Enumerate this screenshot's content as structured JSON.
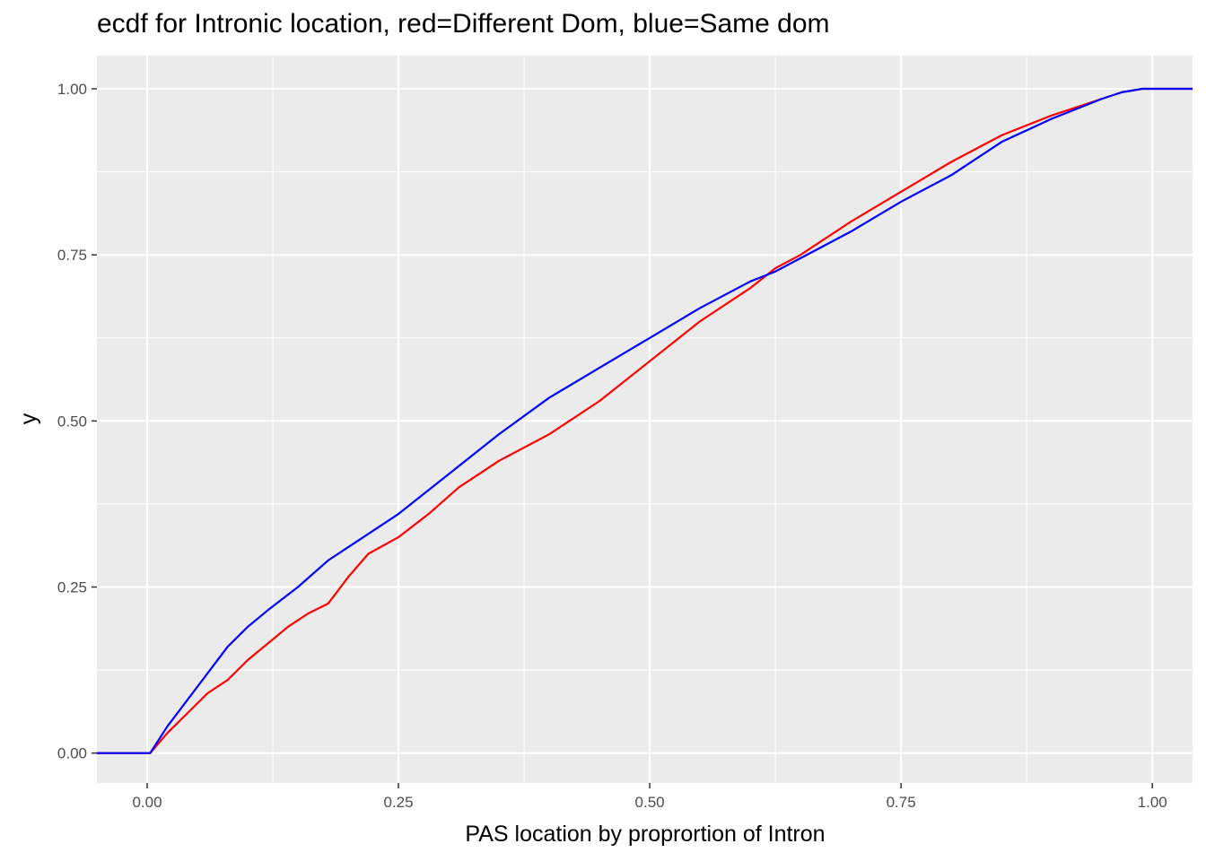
{
  "chart_data": {
    "type": "line",
    "title": "ecdf for Intronic location, red=Different Dom, blue=Same dom",
    "xlabel": "PAS location by proprortion of Intron",
    "ylabel": "y",
    "xlim": [
      -0.05,
      1.04
    ],
    "ylim": [
      -0.045,
      1.05
    ],
    "x_ticks": [
      "0.00",
      "0.25",
      "0.50",
      "0.75",
      "1.00"
    ],
    "y_ticks": [
      "0.00",
      "0.25",
      "0.50",
      "0.75",
      "1.00"
    ],
    "grid": true,
    "legend": "none",
    "series": [
      {
        "color": "#ff0000",
        "x": [
          -0.05,
          0.003,
          0.02,
          0.04,
          0.06,
          0.08,
          0.1,
          0.12,
          0.14,
          0.16,
          0.18,
          0.2,
          0.22,
          0.25,
          0.28,
          0.31,
          0.35,
          0.4,
          0.45,
          0.5,
          0.55,
          0.6,
          0.625,
          0.65,
          0.7,
          0.75,
          0.8,
          0.85,
          0.9,
          0.95,
          0.97,
          0.99,
          1.04
        ],
        "y": [
          0.0,
          0.0,
          0.03,
          0.06,
          0.09,
          0.11,
          0.14,
          0.165,
          0.19,
          0.21,
          0.225,
          0.265,
          0.3,
          0.325,
          0.36,
          0.4,
          0.44,
          0.48,
          0.53,
          0.59,
          0.65,
          0.7,
          0.73,
          0.75,
          0.8,
          0.845,
          0.89,
          0.93,
          0.96,
          0.985,
          0.995,
          1.0,
          1.0
        ]
      },
      {
        "color": "#0000ff",
        "x": [
          -0.05,
          0.003,
          0.02,
          0.04,
          0.06,
          0.08,
          0.1,
          0.12,
          0.15,
          0.18,
          0.21,
          0.25,
          0.3,
          0.35,
          0.4,
          0.45,
          0.5,
          0.55,
          0.6,
          0.625,
          0.65,
          0.7,
          0.75,
          0.8,
          0.85,
          0.9,
          0.95,
          0.97,
          0.99,
          1.04
        ],
        "y": [
          0.0,
          0.0,
          0.04,
          0.08,
          0.12,
          0.16,
          0.19,
          0.215,
          0.25,
          0.29,
          0.32,
          0.36,
          0.42,
          0.48,
          0.535,
          0.58,
          0.625,
          0.67,
          0.71,
          0.725,
          0.745,
          0.785,
          0.83,
          0.87,
          0.92,
          0.955,
          0.985,
          0.995,
          1.0,
          1.0
        ]
      }
    ]
  }
}
